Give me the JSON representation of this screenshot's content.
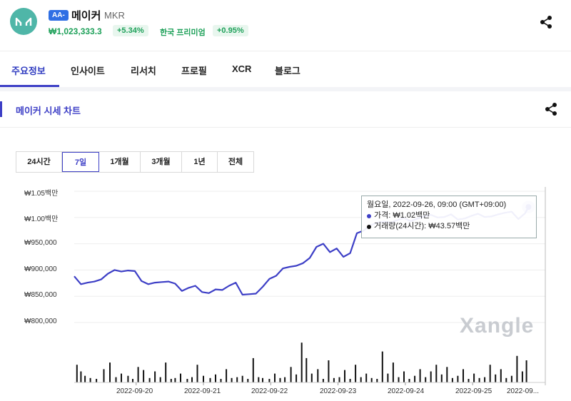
{
  "header": {
    "grade_badge": "AA-",
    "coin_name": "메이커",
    "symbol": "MKR",
    "price": "₩1,023,333.3",
    "change": "+5.34%",
    "premium_label": "한국 프리미엄",
    "premium_value": "+0.95%",
    "logo_icon": "maker-logo-icon",
    "share_icon": "share-icon"
  },
  "tabs": [
    {
      "label": "주요정보",
      "active": true
    },
    {
      "label": "인사이트"
    },
    {
      "label": "리서치"
    },
    {
      "label": "프로필"
    },
    {
      "label": "XCR"
    },
    {
      "label": "블로그"
    }
  ],
  "section": {
    "title": "메이커 시세 차트",
    "share_icon": "share-icon"
  },
  "ranges": [
    {
      "label": "24시간"
    },
    {
      "label": "7일",
      "active": true
    },
    {
      "label": "1개월"
    },
    {
      "label": "3개월"
    },
    {
      "label": "1년"
    },
    {
      "label": "전체"
    }
  ],
  "tooltip": {
    "title": "월요일, 2022-09-26, 09:00 (GMT+09:00)",
    "price_line": "가격: ₩1.02백만",
    "volume_line": "거래량(24시간): ₩43.57백만"
  },
  "watermark": "Xangle",
  "colors": {
    "line": "#3d3fc6",
    "accent": "#3d3fc6",
    "positive": "#1fa15a",
    "volume": "#111111"
  },
  "chart_data": {
    "type": "line",
    "title": "",
    "ytick_labels": [
      "₩1.05백만",
      "₩1.00백만",
      "₩950,000",
      "₩900,000",
      "₩850,000",
      "₩800,000"
    ],
    "yticks": [
      1050000,
      1000000,
      950000,
      900000,
      850000,
      800000
    ],
    "ylim": [
      800000,
      1050000
    ],
    "xtick_labels": [
      "2022-09-20",
      "2022-09-21",
      "2022-09-22",
      "2022-09-23",
      "2022-09-24",
      "2022-09-25",
      "2022-09..."
    ],
    "xlim": [
      0,
      7
    ],
    "series": [
      {
        "type": "line",
        "x": [
          0,
          0.1,
          0.2,
          0.3,
          0.4,
          0.5,
          0.6,
          0.7,
          0.8,
          0.9,
          1.0,
          1.1,
          1.2,
          1.3,
          1.4,
          1.5,
          1.6,
          1.7,
          1.8,
          1.9,
          2.0,
          2.1,
          2.2,
          2.3,
          2.4,
          2.5,
          2.6,
          2.7,
          2.8,
          2.9,
          3.0,
          3.1,
          3.2,
          3.3,
          3.4,
          3.5,
          3.6,
          3.7,
          3.8,
          3.9,
          4.0,
          4.1,
          4.2,
          4.3,
          4.4,
          4.5,
          4.6,
          4.7,
          4.8,
          4.9,
          5.0,
          5.1,
          5.2,
          5.3,
          5.4,
          5.5,
          5.6,
          5.7,
          5.8,
          5.9,
          6.0,
          6.1,
          6.2,
          6.3,
          6.4,
          6.5,
          6.6,
          6.7,
          6.75
        ],
        "y": [
          888000,
          873000,
          876000,
          878000,
          882000,
          893000,
          900000,
          897000,
          899000,
          898000,
          879000,
          873000,
          876000,
          877000,
          878000,
          874000,
          860000,
          866000,
          870000,
          858000,
          856000,
          863000,
          862000,
          870000,
          876000,
          853000,
          854000,
          855000,
          868000,
          883000,
          889000,
          903000,
          906000,
          908000,
          913000,
          923000,
          944000,
          950000,
          934000,
          941000,
          925000,
          932000,
          970000,
          975000,
          985000,
          990000,
          992000,
          990000,
          995000,
          999000,
          993000,
          998000,
          1002000,
          1005000,
          1000000,
          1001000,
          1006000,
          996000,
          998000,
          1003000,
          1007000,
          1001000,
          1002000,
          1006000,
          1009000,
          1011000,
          997000,
          1008000,
          1020000
        ]
      },
      {
        "type": "bar",
        "name": "",
        "x": [
          0.04,
          0.1,
          0.16,
          0.24,
          0.33,
          0.44,
          0.53,
          0.62,
          0.7,
          0.8,
          0.87,
          0.95,
          1.03,
          1.12,
          1.2,
          1.28,
          1.36,
          1.44,
          1.5,
          1.58,
          1.68,
          1.75,
          1.83,
          1.92,
          2.02,
          2.1,
          2.18,
          2.26,
          2.34,
          2.42,
          2.5,
          2.58,
          2.66,
          2.74,
          2.8,
          2.9,
          2.98,
          3.06,
          3.13,
          3.22,
          3.3,
          3.38,
          3.45,
          3.53,
          3.62,
          3.7,
          3.78,
          3.86,
          3.94,
          4.02,
          4.1,
          4.18,
          4.26,
          4.34,
          4.42,
          4.5,
          4.58,
          4.66,
          4.74,
          4.82,
          4.9,
          4.98,
          5.06,
          5.14,
          5.22,
          5.3,
          5.38,
          5.46,
          5.54,
          5.62,
          5.7,
          5.78,
          5.86,
          5.94,
          6.02,
          6.1,
          6.18,
          6.26,
          6.34,
          6.42,
          6.5,
          6.58,
          6.66,
          6.72
        ],
        "y": [
          40,
          25,
          15,
          10,
          8,
          30,
          45,
          12,
          20,
          15,
          8,
          35,
          28,
          10,
          25,
          12,
          45,
          8,
          10,
          20,
          8,
          12,
          40,
          15,
          10,
          18,
          8,
          30,
          10,
          12,
          15,
          8,
          55,
          12,
          10,
          8,
          20,
          10,
          12,
          35,
          18,
          90,
          55,
          20,
          30,
          8,
          50,
          10,
          12,
          28,
          8,
          40,
          12,
          20,
          10,
          8,
          70,
          20,
          45,
          12,
          25,
          8,
          15,
          30,
          12,
          25,
          40,
          18,
          35,
          10,
          15,
          30,
          8,
          20,
          10,
          12,
          40,
          18,
          30,
          10,
          15,
          60,
          25,
          50
        ]
      }
    ]
  }
}
